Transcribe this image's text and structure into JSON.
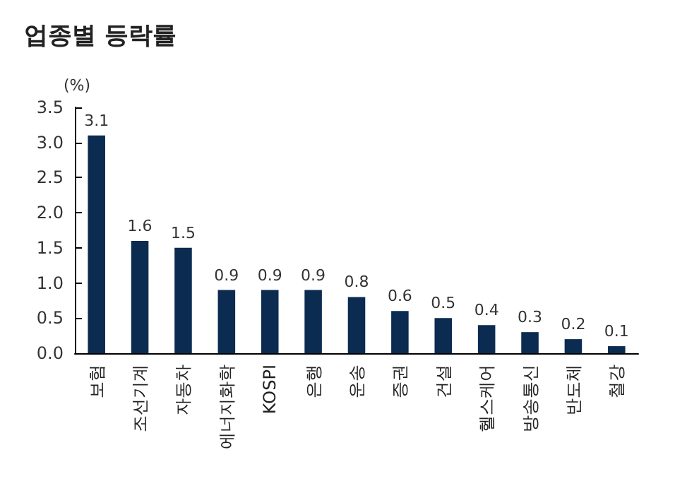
{
  "chart_data": {
    "type": "bar",
    "title": "업종별 등락률",
    "ylabel": "(%)",
    "categories": [
      "보험",
      "조선기계",
      "자동차",
      "에너지화학",
      "KOSPI",
      "은행",
      "운송",
      "증권",
      "건설",
      "헬스케어",
      "방송통신",
      "반도체",
      "철강"
    ],
    "values": [
      3.1,
      1.6,
      1.5,
      0.9,
      0.9,
      0.9,
      0.8,
      0.6,
      0.5,
      0.4,
      0.3,
      0.2,
      0.1
    ],
    "color": "#0c2b50",
    "ylim": [
      0,
      3.5
    ],
    "yticks": [
      {
        "value": 0,
        "label": "0.0"
      },
      {
        "value": 0.5,
        "label": "0.5"
      },
      {
        "value": 1,
        "label": "1.0"
      },
      {
        "value": 1.5,
        "label": "1.5"
      },
      {
        "value": 2,
        "label": "2.0"
      },
      {
        "value": 2.5,
        "label": "2.5"
      },
      {
        "value": 3,
        "label": "3.0"
      },
      {
        "value": 3.5,
        "label": "3.5"
      }
    ],
    "data_labels": true,
    "grid": false
  }
}
